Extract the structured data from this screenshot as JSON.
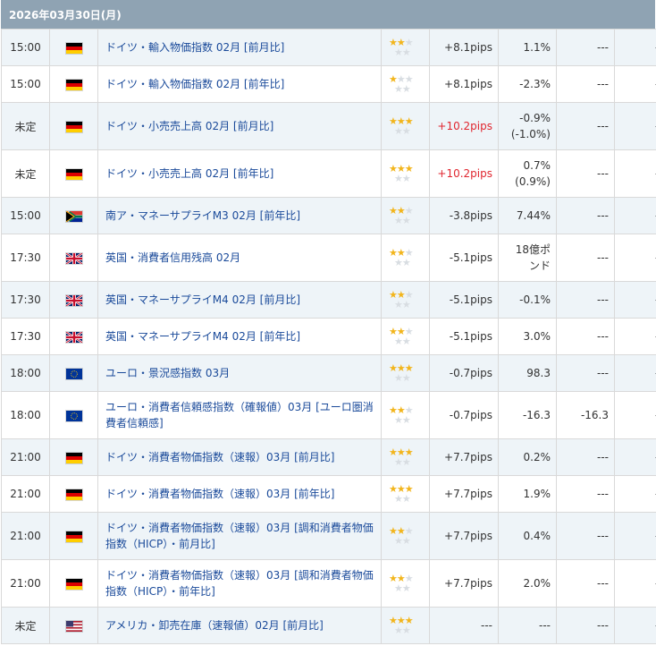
{
  "date_header": "2026年03月30日(月)",
  "colors": {
    "star_on": "#f2b51c",
    "star_off": "#d8dde2",
    "positive_pips": "#e0262f",
    "link": "#1a4a9a",
    "header_bg": "#8fa3b3"
  },
  "rows": [
    {
      "time": "15:00",
      "country": "germany-flag",
      "indicator": "ドイツ・輸入物価指数 02月 [前月比]",
      "importance": 2,
      "pips": "+8.1pips",
      "pips_red": false,
      "value": "1.1%",
      "forecast": "---",
      "result": "---"
    },
    {
      "time": "15:00",
      "country": "germany-flag",
      "indicator": "ドイツ・輸入物価指数 02月 [前年比]",
      "importance": 1,
      "pips": "+8.1pips",
      "pips_red": false,
      "value": "-2.3%",
      "forecast": "---",
      "result": "---"
    },
    {
      "time": "未定",
      "country": "germany-flag",
      "indicator": "ドイツ・小売売上高 02月 [前月比]",
      "importance": 3,
      "pips": "+10.2pips",
      "pips_red": true,
      "value": "-0.9%",
      "value2": "(-1.0%)",
      "forecast": "---",
      "result": "---"
    },
    {
      "time": "未定",
      "country": "germany-flag",
      "indicator": "ドイツ・小売売上高 02月 [前年比]",
      "importance": 3,
      "pips": "+10.2pips",
      "pips_red": true,
      "value": "0.7%",
      "value2": "(0.9%)",
      "forecast": "---",
      "result": "---"
    },
    {
      "time": "15:00",
      "country": "south-africa-flag",
      "indicator": "南ア・マネーサプライM3 02月 [前年比]",
      "importance": 2,
      "pips": "-3.8pips",
      "pips_red": false,
      "value": "7.44%",
      "forecast": "---",
      "result": "---"
    },
    {
      "time": "17:30",
      "country": "uk-flag",
      "indicator": "英国・消費者信用残高 02月",
      "importance": 2,
      "pips": "-5.1pips",
      "pips_red": false,
      "value": "18億ポ",
      "value2": "ンド",
      "forecast": "---",
      "result": "---"
    },
    {
      "time": "17:30",
      "country": "uk-flag",
      "indicator": "英国・マネーサプライM4 02月 [前月比]",
      "importance": 2,
      "pips": "-5.1pips",
      "pips_red": false,
      "value": "-0.1%",
      "forecast": "---",
      "result": "---"
    },
    {
      "time": "17:30",
      "country": "uk-flag",
      "indicator": "英国・マネーサプライM4 02月 [前年比]",
      "importance": 2,
      "pips": "-5.1pips",
      "pips_red": false,
      "value": "3.0%",
      "forecast": "---",
      "result": "---"
    },
    {
      "time": "18:00",
      "country": "eu-flag",
      "indicator": "ユーロ・景況感指数 03月",
      "importance": 3,
      "pips": "-0.7pips",
      "pips_red": false,
      "value": "98.3",
      "forecast": "---",
      "result": "---"
    },
    {
      "time": "18:00",
      "country": "eu-flag",
      "indicator": "ユーロ・消費者信頼感指数（確報値）03月 [ユーロ圏消費者信頼感]",
      "importance": 2,
      "pips": "-0.7pips",
      "pips_red": false,
      "value": "-16.3",
      "forecast": "-16.3",
      "result": "---"
    },
    {
      "time": "21:00",
      "country": "germany-flag",
      "indicator": "ドイツ・消費者物価指数（速報）03月 [前月比]",
      "importance": 3,
      "pips": "+7.7pips",
      "pips_red": false,
      "value": "0.2%",
      "forecast": "---",
      "result": "---"
    },
    {
      "time": "21:00",
      "country": "germany-flag",
      "indicator": "ドイツ・消費者物価指数（速報）03月 [前年比]",
      "importance": 3,
      "pips": "+7.7pips",
      "pips_red": false,
      "value": "1.9%",
      "forecast": "---",
      "result": "---"
    },
    {
      "time": "21:00",
      "country": "germany-flag",
      "indicator": "ドイツ・消費者物価指数（速報）03月 [調和消費者物価指数（HICP）・前月比]",
      "importance": 2,
      "pips": "+7.7pips",
      "pips_red": false,
      "value": "0.4%",
      "forecast": "---",
      "result": "---"
    },
    {
      "time": "21:00",
      "country": "germany-flag",
      "indicator": "ドイツ・消費者物価指数（速報）03月 [調和消費者物価指数（HICP）・前年比]",
      "importance": 2,
      "pips": "+7.7pips",
      "pips_red": false,
      "value": "2.0%",
      "forecast": "---",
      "result": "---"
    },
    {
      "time": "未定",
      "country": "usa-flag",
      "indicator": "アメリカ・卸売在庫（速報値）02月 [前月比]",
      "importance": 3,
      "pips": "---",
      "pips_red": false,
      "value": "---",
      "forecast": "---",
      "result": "---"
    }
  ]
}
